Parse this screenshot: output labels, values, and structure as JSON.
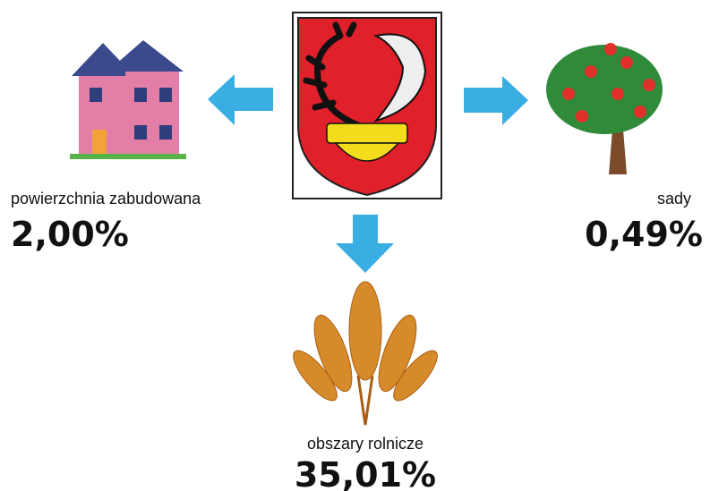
{
  "items": [
    {
      "label": "powierzchnia zabudowana",
      "value": "2,00%"
    },
    {
      "label": "sady",
      "value": "0,49%"
    },
    {
      "label": "obszary rolnicze",
      "value": "35,01%"
    }
  ]
}
